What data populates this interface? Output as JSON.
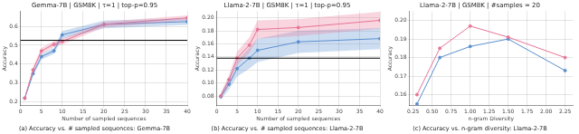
{
  "chart_data": [
    {
      "type": "line",
      "title": "Gemma-7B | GSM8K | τ=1 | top-p=0.95",
      "xlabel": "Number of sampled sequences",
      "ylabel": "Accuracy",
      "caption": "(a) Accuracy vs. # sampled sequences: Gemma-7B",
      "xlim": [
        0,
        40
      ],
      "ylim": [
        0.18,
        0.68
      ],
      "xticks": [
        0,
        5,
        10,
        15,
        20,
        25,
        30,
        35,
        40
      ],
      "yticks": [
        0.2,
        0.3,
        0.4,
        0.5,
        0.6
      ],
      "grid": true,
      "hline": 0.526,
      "x": [
        1,
        3,
        5,
        8,
        10,
        20,
        40
      ],
      "series": [
        {
          "color": "#e87494",
          "marker": "circle",
          "values": [
            0.22,
            0.37,
            0.47,
            0.505,
            0.52,
            0.61,
            0.645
          ],
          "lo": [
            0.215,
            0.355,
            0.455,
            0.49,
            0.505,
            0.595,
            0.632
          ],
          "hi": [
            0.225,
            0.385,
            0.485,
            0.52,
            0.535,
            0.625,
            0.658
          ]
        },
        {
          "color": "#5b8fcf",
          "marker": "circle",
          "values": [
            0.22,
            0.35,
            0.44,
            0.47,
            0.555,
            0.61,
            0.625
          ],
          "lo": [
            0.215,
            0.34,
            0.425,
            0.455,
            0.535,
            0.59,
            0.608
          ],
          "hi": [
            0.225,
            0.36,
            0.455,
            0.485,
            0.575,
            0.63,
            0.642
          ]
        }
      ]
    },
    {
      "type": "line",
      "title": "Llama-2-7B | GSM8K | τ=1 | top-p=0.95",
      "xlabel": "Number of sampled sequences",
      "ylabel": "Accuracy",
      "caption": "(b) Accuracy vs. # sampled sequences: Llama-2-7B",
      "xlim": [
        0,
        40
      ],
      "ylim": [
        0.065,
        0.21
      ],
      "xticks": [
        0,
        5,
        10,
        15,
        20,
        25,
        30,
        35,
        40
      ],
      "yticks": [
        0.08,
        {
          "value": 0.1,
          "label": "0.10"
        },
        0.12,
        0.14,
        0.16,
        0.18,
        {
          "value": 0.2,
          "label": "0.20"
        }
      ],
      "grid": true,
      "hline": 0.138,
      "x": [
        1,
        3,
        5,
        8,
        10,
        20,
        40
      ],
      "series": [
        {
          "color": "#e87494",
          "marker": "circle",
          "values": [
            0.08,
            0.105,
            0.138,
            0.158,
            0.182,
            0.185,
            0.196
          ],
          "lo": [
            0.075,
            0.098,
            0.128,
            0.146,
            0.168,
            0.172,
            0.183
          ],
          "hi": [
            0.085,
            0.112,
            0.148,
            0.17,
            0.196,
            0.198,
            0.209
          ]
        },
        {
          "color": "#5b8fcf",
          "marker": "circle",
          "values": [
            0.079,
            0.098,
            0.122,
            0.138,
            0.15,
            0.163,
            0.168
          ],
          "lo": [
            0.074,
            0.09,
            0.11,
            0.122,
            0.132,
            0.146,
            0.152
          ],
          "hi": [
            0.084,
            0.106,
            0.134,
            0.154,
            0.168,
            0.18,
            0.184
          ]
        }
      ]
    },
    {
      "type": "line",
      "title": "Llama-2-7B | GSM8K | #samples = 20",
      "xlabel": "n-gram Diversity",
      "ylabel": "Accuracy",
      "caption": "(c) Accuracy vs. n-gram diversity: Llama-2-7B",
      "xlim": [
        0.2,
        2.35
      ],
      "ylim": [
        0.154,
        0.205
      ],
      "xticks": [
        0.25,
        {
          "value": 0.5,
          "label": "0.50"
        },
        0.75,
        {
          "value": 1,
          "label": "1.00"
        },
        1.25,
        {
          "value": 1.5,
          "label": "1.50"
        },
        1.75,
        {
          "value": 2,
          "label": "2.00"
        },
        2.25
      ],
      "yticks": [
        0.16,
        0.17,
        0.18,
        0.19,
        {
          "value": 0.2,
          "label": "0.20"
        }
      ],
      "grid": true,
      "series": [
        {
          "color": "#e87494",
          "marker": "circle",
          "x": [
            0.3,
            0.6,
            1.0,
            1.5,
            2.25
          ],
          "values": [
            0.16,
            0.185,
            0.197,
            0.191,
            0.18
          ]
        },
        {
          "color": "#5b8fcf",
          "marker": "circle",
          "x": [
            0.3,
            0.6,
            1.0,
            1.5,
            2.25
          ],
          "values": [
            0.155,
            0.18,
            0.186,
            0.19,
            0.173
          ]
        }
      ]
    }
  ]
}
